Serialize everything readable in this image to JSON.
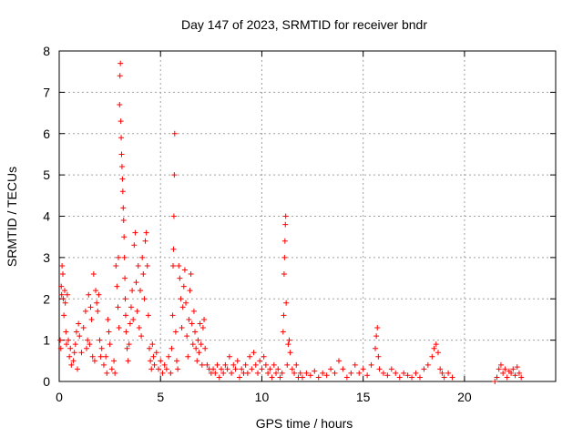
{
  "chart_data": {
    "type": "scatter",
    "title": "Day 147 of 2023, SRMTID for receiver bndr",
    "xlabel": "GPS time / hours",
    "ylabel": "SRMTID / TECUs",
    "xlim": [
      0,
      24.5
    ],
    "ylim": [
      0,
      8
    ],
    "grid": true,
    "x_ticks": [
      0,
      5,
      10,
      15,
      20
    ],
    "y_ticks": [
      0,
      1,
      2,
      3,
      4,
      5,
      6,
      7,
      8
    ],
    "series": [
      {
        "name": "SRMTID",
        "color": "#ff0000",
        "marker": "plus",
        "points": [
          [
            0.05,
            1.0
          ],
          [
            0.08,
            0.8
          ],
          [
            0.1,
            2.3
          ],
          [
            0.12,
            2.1
          ],
          [
            0.14,
            2.8
          ],
          [
            0.18,
            2.6
          ],
          [
            0.2,
            2.0
          ],
          [
            0.23,
            1.6
          ],
          [
            0.27,
            2.2
          ],
          [
            0.3,
            1.9
          ],
          [
            0.33,
            1.2
          ],
          [
            0.36,
            0.9
          ],
          [
            0.4,
            2.1
          ],
          [
            0.45,
            1.0
          ],
          [
            0.5,
            0.6
          ],
          [
            0.55,
            0.8
          ],
          [
            0.6,
            0.4
          ],
          [
            0.7,
            0.5
          ],
          [
            0.75,
            0.7
          ],
          [
            0.8,
            0.9
          ],
          [
            0.85,
            1.2
          ],
          [
            0.9,
            0.3
          ],
          [
            0.95,
            1.4
          ],
          [
            1.0,
            1.1
          ],
          [
            1.1,
            0.7
          ],
          [
            1.2,
            1.3
          ],
          [
            1.3,
            1.7
          ],
          [
            1.35,
            0.8
          ],
          [
            1.4,
            1.0
          ],
          [
            1.45,
            2.1
          ],
          [
            1.5,
            0.9
          ],
          [
            1.55,
            1.8
          ],
          [
            1.6,
            1.5
          ],
          [
            1.65,
            0.6
          ],
          [
            1.7,
            2.6
          ],
          [
            1.75,
            0.5
          ],
          [
            1.8,
            2.2
          ],
          [
            1.85,
            1.9
          ],
          [
            1.9,
            1.7
          ],
          [
            1.95,
            2.1
          ],
          [
            2.0,
            1.0
          ],
          [
            2.05,
            0.6
          ],
          [
            2.1,
            0.8
          ],
          [
            2.2,
            0.4
          ],
          [
            2.3,
            0.6
          ],
          [
            2.35,
            0.2
          ],
          [
            2.4,
            1.5
          ],
          [
            2.45,
            1.2
          ],
          [
            2.5,
            0.9
          ],
          [
            2.6,
            0.3
          ],
          [
            2.7,
            0.5
          ],
          [
            2.75,
            0.2
          ],
          [
            2.8,
            2.8
          ],
          [
            2.85,
            2.3
          ],
          [
            2.9,
            1.8
          ],
          [
            2.92,
            3.0
          ],
          [
            2.95,
            1.3
          ],
          [
            2.98,
            6.7
          ],
          [
            3.0,
            7.4
          ],
          [
            3.02,
            7.7
          ],
          [
            3.04,
            6.3
          ],
          [
            3.06,
            5.9
          ],
          [
            3.08,
            5.5
          ],
          [
            3.1,
            5.2
          ],
          [
            3.12,
            4.9
          ],
          [
            3.14,
            4.6
          ],
          [
            3.16,
            4.2
          ],
          [
            3.18,
            3.9
          ],
          [
            3.2,
            3.5
          ],
          [
            3.22,
            3.0
          ],
          [
            3.24,
            2.5
          ],
          [
            3.26,
            2.0
          ],
          [
            3.28,
            1.6
          ],
          [
            3.3,
            1.2
          ],
          [
            3.35,
            0.8
          ],
          [
            3.4,
            0.5
          ],
          [
            3.45,
            0.9
          ],
          [
            3.5,
            1.4
          ],
          [
            3.55,
            1.8
          ],
          [
            3.6,
            2.2
          ],
          [
            3.65,
            1.5
          ],
          [
            3.7,
            3.3
          ],
          [
            3.75,
            3.6
          ],
          [
            3.8,
            2.4
          ],
          [
            3.85,
            1.7
          ],
          [
            3.9,
            2.8
          ],
          [
            3.95,
            1.3
          ],
          [
            4.0,
            2.2
          ],
          [
            4.05,
            1.1
          ],
          [
            4.1,
            3.0
          ],
          [
            4.15,
            2.6
          ],
          [
            4.2,
            2.0
          ],
          [
            4.25,
            3.4
          ],
          [
            4.3,
            3.6
          ],
          [
            4.35,
            2.8
          ],
          [
            4.4,
            1.6
          ],
          [
            4.45,
            0.8
          ],
          [
            4.5,
            0.5
          ],
          [
            4.55,
            0.3
          ],
          [
            4.6,
            0.9
          ],
          [
            4.65,
            0.6
          ],
          [
            4.7,
            0.4
          ],
          [
            4.8,
            0.7
          ],
          [
            4.9,
            0.3
          ],
          [
            5.0,
            0.5
          ],
          [
            5.1,
            0.2
          ],
          [
            5.2,
            0.4
          ],
          [
            5.3,
            0.3
          ],
          [
            5.4,
            0.6
          ],
          [
            5.5,
            0.2
          ],
          [
            5.55,
            0.8
          ],
          [
            5.6,
            1.6
          ],
          [
            5.62,
            2.8
          ],
          [
            5.64,
            3.2
          ],
          [
            5.66,
            4.0
          ],
          [
            5.68,
            5.0
          ],
          [
            5.7,
            6.0
          ],
          [
            5.75,
            1.2
          ],
          [
            5.8,
            0.5
          ],
          [
            5.85,
            0.3
          ],
          [
            5.9,
            2.8
          ],
          [
            5.95,
            2.5
          ],
          [
            6.0,
            2.0
          ],
          [
            6.05,
            1.3
          ],
          [
            6.1,
            1.8
          ],
          [
            6.15,
            2.3
          ],
          [
            6.2,
            2.7
          ],
          [
            6.25,
            1.9
          ],
          [
            6.3,
            1.1
          ],
          [
            6.35,
            0.6
          ],
          [
            6.4,
            1.5
          ],
          [
            6.45,
            2.2
          ],
          [
            6.5,
            2.6
          ],
          [
            6.55,
            1.4
          ],
          [
            6.6,
            0.9
          ],
          [
            6.65,
            1.7
          ],
          [
            6.7,
            1.2
          ],
          [
            6.75,
            0.8
          ],
          [
            6.8,
            0.5
          ],
          [
            6.85,
            1.0
          ],
          [
            6.9,
            0.7
          ],
          [
            6.95,
            1.4
          ],
          [
            7.0,
            0.9
          ],
          [
            7.05,
            0.4
          ],
          [
            7.1,
            1.3
          ],
          [
            7.15,
            1.5
          ],
          [
            7.2,
            0.8
          ],
          [
            7.3,
            0.4
          ],
          [
            7.4,
            0.3
          ],
          [
            7.5,
            0.2
          ],
          [
            7.6,
            0.3
          ],
          [
            7.7,
            0.2
          ],
          [
            7.8,
            0.4
          ],
          [
            7.9,
            0.1
          ],
          [
            8.0,
            0.3
          ],
          [
            8.1,
            0.2
          ],
          [
            8.2,
            0.4
          ],
          [
            8.3,
            0.3
          ],
          [
            8.4,
            0.6
          ],
          [
            8.5,
            0.2
          ],
          [
            8.6,
            0.4
          ],
          [
            8.7,
            0.3
          ],
          [
            8.8,
            0.5
          ],
          [
            8.9,
            0.1
          ],
          [
            9.0,
            0.3
          ],
          [
            9.1,
            0.2
          ],
          [
            9.2,
            0.4
          ],
          [
            9.3,
            0.2
          ],
          [
            9.4,
            0.6
          ],
          [
            9.5,
            0.3
          ],
          [
            9.6,
            0.7
          ],
          [
            9.7,
            0.4
          ],
          [
            9.8,
            0.2
          ],
          [
            9.9,
            0.5
          ],
          [
            10.0,
            0.3
          ],
          [
            10.1,
            0.6
          ],
          [
            10.2,
            0.4
          ],
          [
            10.3,
            0.2
          ],
          [
            10.4,
            0.3
          ],
          [
            10.5,
            0.1
          ],
          [
            10.6,
            0.4
          ],
          [
            10.7,
            0.2
          ],
          [
            10.8,
            0.3
          ],
          [
            10.9,
            0.1
          ],
          [
            11.0,
            0.2
          ],
          [
            11.05,
            1.2
          ],
          [
            11.08,
            1.6
          ],
          [
            11.1,
            2.6
          ],
          [
            11.12,
            3.0
          ],
          [
            11.14,
            3.4
          ],
          [
            11.16,
            3.8
          ],
          [
            11.18,
            4.0
          ],
          [
            11.2,
            1.9
          ],
          [
            11.25,
            0.4
          ],
          [
            11.3,
            0.9
          ],
          [
            11.35,
            1.0
          ],
          [
            11.4,
            0.7
          ],
          [
            11.5,
            0.3
          ],
          [
            11.6,
            0.2
          ],
          [
            11.7,
            0.4
          ],
          [
            11.8,
            0.1
          ],
          [
            11.9,
            0.2
          ],
          [
            12.0,
            0.1
          ],
          [
            12.2,
            0.2
          ],
          [
            12.4,
            0.15
          ],
          [
            12.6,
            0.25
          ],
          [
            12.8,
            0.1
          ],
          [
            13.0,
            0.2
          ],
          [
            13.2,
            0.15
          ],
          [
            13.4,
            0.3
          ],
          [
            13.6,
            0.2
          ],
          [
            13.8,
            0.5
          ],
          [
            14.0,
            0.3
          ],
          [
            14.2,
            0.1
          ],
          [
            14.4,
            0.2
          ],
          [
            14.6,
            0.4
          ],
          [
            14.8,
            0.2
          ],
          [
            15.0,
            0.3
          ],
          [
            15.2,
            0.15
          ],
          [
            15.4,
            0.4
          ],
          [
            15.6,
            0.8
          ],
          [
            15.65,
            1.1
          ],
          [
            15.7,
            1.3
          ],
          [
            15.75,
            0.6
          ],
          [
            15.8,
            0.3
          ],
          [
            16.0,
            0.2
          ],
          [
            16.2,
            0.15
          ],
          [
            16.4,
            0.3
          ],
          [
            16.6,
            0.2
          ],
          [
            16.8,
            0.1
          ],
          [
            17.0,
            0.2
          ],
          [
            17.2,
            0.15
          ],
          [
            17.4,
            0.1
          ],
          [
            17.6,
            0.2
          ],
          [
            17.8,
            0.1
          ],
          [
            18.0,
            0.3
          ],
          [
            18.2,
            0.4
          ],
          [
            18.4,
            0.6
          ],
          [
            18.5,
            0.8
          ],
          [
            18.6,
            0.9
          ],
          [
            18.7,
            0.7
          ],
          [
            18.8,
            0.3
          ],
          [
            18.9,
            0.2
          ],
          [
            19.0,
            0.1
          ],
          [
            19.2,
            0.2
          ],
          [
            19.4,
            0.1
          ],
          [
            21.5,
            0.0
          ],
          [
            21.6,
            0.1
          ],
          [
            21.7,
            0.3
          ],
          [
            21.8,
            0.4
          ],
          [
            21.9,
            0.2
          ],
          [
            22.0,
            0.3
          ],
          [
            22.1,
            0.1
          ],
          [
            22.2,
            0.25
          ],
          [
            22.3,
            0.2
          ],
          [
            22.4,
            0.3
          ],
          [
            22.5,
            0.15
          ],
          [
            22.6,
            0.35
          ],
          [
            22.7,
            0.2
          ],
          [
            22.8,
            0.1
          ]
        ]
      }
    ]
  }
}
